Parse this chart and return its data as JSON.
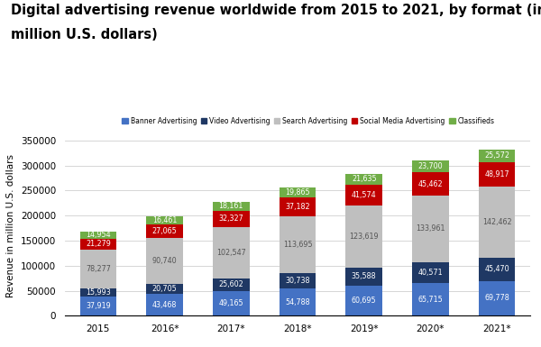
{
  "title_line1": "Digital advertising revenue worldwide from 2015 to 2021, by format (in",
  "title_line2": "million U.S. dollars)",
  "years": [
    "2015",
    "2016*",
    "2017*",
    "2018*",
    "2019*",
    "2020*",
    "2021*"
  ],
  "banner": [
    37919,
    43468,
    49165,
    54788,
    60695,
    65715,
    69778
  ],
  "video": [
    15993,
    20705,
    25602,
    30738,
    35588,
    40571,
    45470
  ],
  "search": [
    78277,
    90740,
    102547,
    113695,
    123619,
    133961,
    142462
  ],
  "social_media": [
    21279,
    27065,
    32327,
    37182,
    41574,
    45462,
    48917
  ],
  "classifieds": [
    14954,
    16461,
    18161,
    19865,
    21635,
    23700,
    25572
  ],
  "colors": {
    "banner": "#4472c4",
    "video": "#1f3864",
    "search": "#bfbfbf",
    "social_media": "#c00000",
    "classifieds": "#70ad47"
  },
  "ylabel": "Revenue in million U.S. dollars",
  "ylim": [
    0,
    360000
  ],
  "yticks": [
    0,
    50000,
    100000,
    150000,
    200000,
    250000,
    300000,
    350000
  ],
  "ytick_labels": [
    "0",
    "50000",
    "100000",
    "150000",
    "200000",
    "250000",
    "300000",
    "350000"
  ],
  "legend_labels": [
    "Banner Advertising",
    "Video Advertising",
    "Search Advertising",
    "Social Media Advertising",
    "Classifieds"
  ],
  "legend_colors": [
    "#4472c4",
    "#1f3864",
    "#bfbfbf",
    "#c00000",
    "#70ad47"
  ],
  "title_fontsize": 10.5,
  "label_fontsize": 5.8,
  "axis_fontsize": 7.5
}
